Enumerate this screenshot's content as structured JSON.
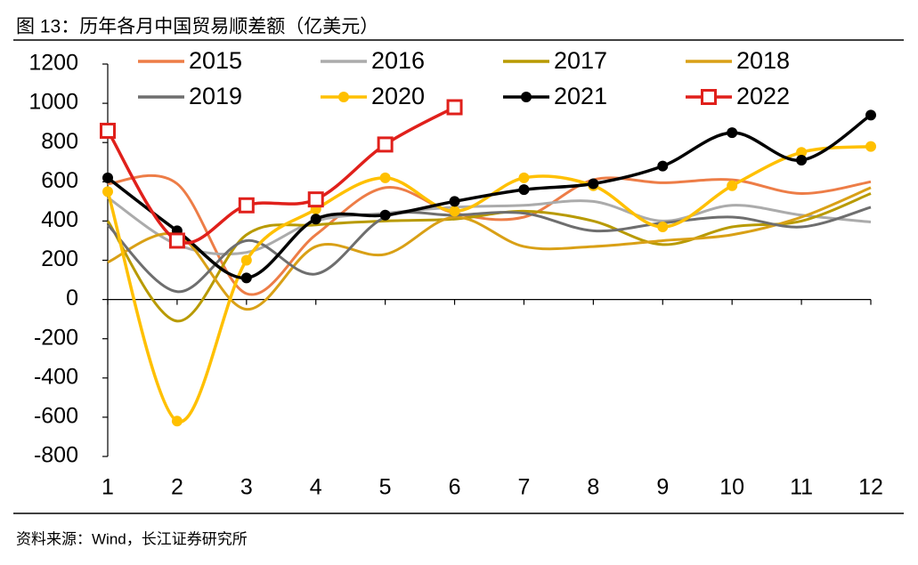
{
  "chart_data": {
    "type": "line",
    "title": "图 13：历年各月中国贸易顺差额（亿美元）",
    "source": "资料来源：Wind，长江证券研究所",
    "categories": [
      "1",
      "2",
      "3",
      "4",
      "5",
      "6",
      "7",
      "8",
      "9",
      "10",
      "11",
      "12"
    ],
    "ylim": [
      -800,
      1200
    ],
    "yticks": [
      -800,
      -600,
      -400,
      -200,
      0,
      200,
      400,
      600,
      800,
      1000,
      1200
    ],
    "smooth": true,
    "series": [
      {
        "name": "2015",
        "color": "#ED7D47",
        "marker": null,
        "values": [
          590,
          590,
          30,
          330,
          570,
          440,
          420,
          610,
          595,
          610,
          540,
          600
        ]
      },
      {
        "name": "2016",
        "color": "#ABABAB",
        "marker": null,
        "values": [
          520,
          280,
          240,
          400,
          440,
          470,
          480,
          500,
          400,
          480,
          430,
          395
        ]
      },
      {
        "name": "2017",
        "color": "#B89A00",
        "marker": null,
        "values": [
          400,
          -110,
          330,
          380,
          400,
          410,
          450,
          400,
          280,
          370,
          400,
          540
        ]
      },
      {
        "name": "2018",
        "color": "#D9A016",
        "marker": null,
        "values": [
          190,
          330,
          -50,
          270,
          230,
          420,
          270,
          270,
          300,
          330,
          420,
          570
        ]
      },
      {
        "name": "2019",
        "color": "#6E6E6E",
        "marker": null,
        "values": [
          380,
          40,
          300,
          130,
          420,
          430,
          440,
          350,
          390,
          420,
          370,
          470
        ]
      },
      {
        "name": "2020",
        "color": "#FFC000",
        "marker": "circle",
        "values": [
          550,
          -620,
          200,
          460,
          620,
          450,
          620,
          580,
          370,
          580,
          750,
          780
        ]
      },
      {
        "name": "2021",
        "color": "#000000",
        "marker": "circle",
        "values": [
          620,
          350,
          110,
          410,
          430,
          500,
          560,
          590,
          680,
          850,
          710,
          940
        ]
      },
      {
        "name": "2022",
        "color": "#E0201B",
        "marker": "square",
        "values": [
          860,
          300,
          480,
          510,
          790,
          980,
          null,
          null,
          null,
          null,
          null,
          null
        ]
      }
    ]
  }
}
